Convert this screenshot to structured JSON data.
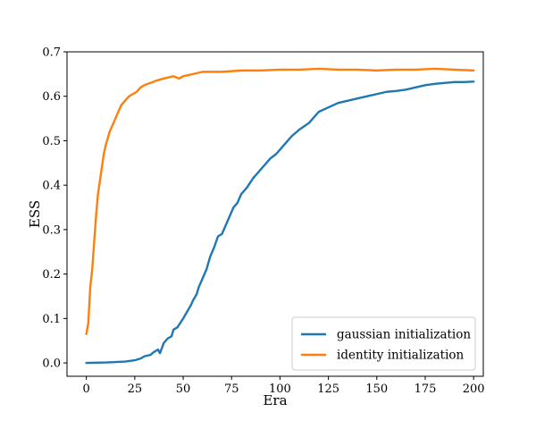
{
  "chart_data": {
    "type": "line",
    "title": "",
    "xlabel": "Era",
    "ylabel": "ESS",
    "xlim": [
      -10,
      205
    ],
    "ylim": [
      -0.03,
      0.7
    ],
    "xticks": [
      0,
      25,
      50,
      75,
      100,
      125,
      150,
      175,
      200
    ],
    "yticks": [
      0.0,
      0.1,
      0.2,
      0.3,
      0.4,
      0.5,
      0.6,
      0.7
    ],
    "xtick_labels": [
      "0",
      "25",
      "50",
      "75",
      "100",
      "125",
      "150",
      "175",
      "200"
    ],
    "ytick_labels": [
      "0.0",
      "0.1",
      "0.2",
      "0.3",
      "0.4",
      "0.5",
      "0.6",
      "0.7"
    ],
    "grid": false,
    "legend_position": "bottom-right",
    "series": [
      {
        "name": "gaussian initialization",
        "color": "#1f77b4",
        "x": [
          0,
          10,
          20,
          25,
          28,
          30,
          33,
          35,
          37,
          38,
          40,
          42,
          44,
          45,
          47,
          50,
          52,
          54,
          55,
          57,
          58,
          60,
          62,
          64,
          66,
          68,
          70,
          72,
          74,
          76,
          78,
          80,
          83,
          86,
          88,
          90,
          93,
          95,
          98,
          100,
          103,
          106,
          110,
          115,
          118,
          120,
          125,
          130,
          135,
          140,
          145,
          150,
          155,
          160,
          165,
          170,
          175,
          180,
          185,
          190,
          195,
          200
        ],
        "values": [
          0.0,
          0.001,
          0.003,
          0.006,
          0.01,
          0.015,
          0.018,
          0.025,
          0.03,
          0.022,
          0.045,
          0.055,
          0.06,
          0.075,
          0.08,
          0.1,
          0.115,
          0.13,
          0.14,
          0.155,
          0.17,
          0.19,
          0.21,
          0.24,
          0.26,
          0.285,
          0.29,
          0.31,
          0.33,
          0.35,
          0.36,
          0.38,
          0.395,
          0.415,
          0.425,
          0.435,
          0.45,
          0.46,
          0.47,
          0.48,
          0.495,
          0.51,
          0.525,
          0.54,
          0.555,
          0.565,
          0.575,
          0.585,
          0.59,
          0.595,
          0.6,
          0.605,
          0.61,
          0.612,
          0.615,
          0.62,
          0.625,
          0.628,
          0.63,
          0.632,
          0.632,
          0.633
        ]
      },
      {
        "name": "identity initialization",
        "color": "#ff7f0e",
        "x": [
          0,
          1,
          2,
          3,
          4,
          5,
          6,
          7,
          8,
          9,
          10,
          12,
          14,
          16,
          18,
          20,
          22,
          24,
          26,
          28,
          30,
          33,
          36,
          40,
          45,
          48,
          50,
          55,
          60,
          65,
          70,
          80,
          90,
          100,
          110,
          120,
          130,
          140,
          150,
          160,
          170,
          180,
          190,
          200
        ],
        "values": [
          0.065,
          0.09,
          0.17,
          0.21,
          0.27,
          0.33,
          0.38,
          0.41,
          0.44,
          0.47,
          0.49,
          0.52,
          0.54,
          0.56,
          0.58,
          0.59,
          0.6,
          0.605,
          0.61,
          0.62,
          0.625,
          0.63,
          0.635,
          0.64,
          0.645,
          0.64,
          0.645,
          0.65,
          0.655,
          0.655,
          0.655,
          0.658,
          0.658,
          0.66,
          0.66,
          0.662,
          0.66,
          0.66,
          0.658,
          0.66,
          0.66,
          0.662,
          0.66,
          0.658
        ]
      }
    ]
  }
}
